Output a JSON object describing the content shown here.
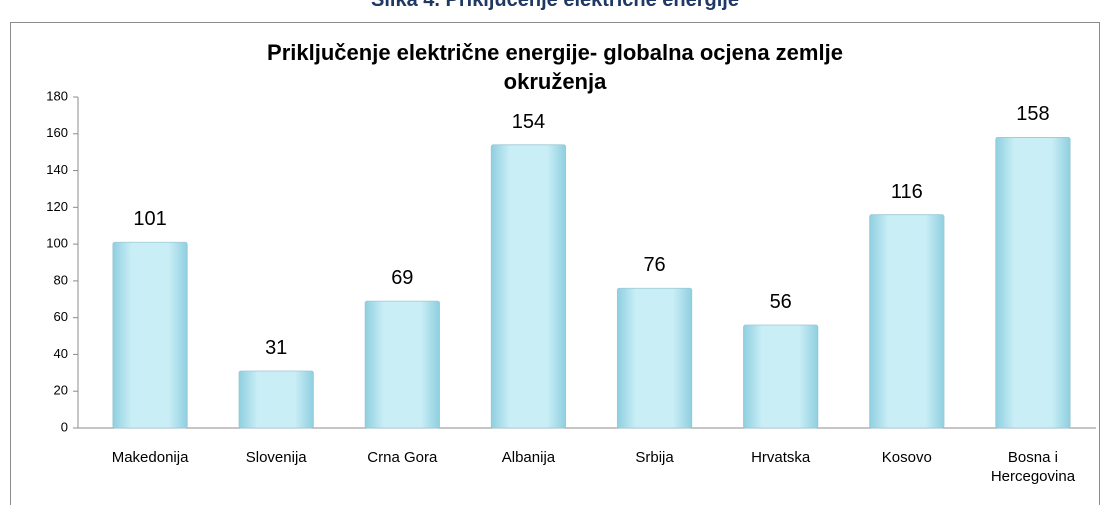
{
  "caption": "Slika 4. Priključenje električne energije",
  "chart_data": {
    "type": "bar",
    "title": "Priključenje električne energije- globalna ocjena zemlje okruženja",
    "categories": [
      "Makedonija",
      "Slovenija",
      "Crna Gora",
      "Albanija",
      "Srbija",
      "Hrvatska",
      "Kosovo",
      "Bosna i Hercegovina"
    ],
    "values": [
      101,
      31,
      69,
      154,
      76,
      56,
      116,
      158
    ],
    "color": "#bfeaf3",
    "ylim": [
      0,
      180
    ],
    "yticks": [
      0,
      20,
      40,
      60,
      80,
      100,
      120,
      140,
      160,
      180
    ],
    "grid": false
  }
}
